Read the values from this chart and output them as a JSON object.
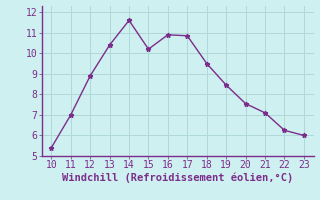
{
  "x": [
    10,
    11,
    12,
    13,
    14,
    15,
    16,
    17,
    18,
    19,
    20,
    21,
    22,
    23
  ],
  "y": [
    5.4,
    7.0,
    8.9,
    10.4,
    11.6,
    10.2,
    10.9,
    10.85,
    9.5,
    8.45,
    7.55,
    7.1,
    6.25,
    6.0
  ],
  "line_color": "#7b2d8b",
  "marker": "*",
  "bg_color": "#cff0f0",
  "grid_color": "#b0d8d8",
  "xlabel": "Windchill (Refroidissement éolien,°C)",
  "xlabel_color": "#7b2d8b",
  "tick_color": "#7b2d8b",
  "spine_color": "#7b2d8b",
  "ylim": [
    5,
    12
  ],
  "xlim": [
    9.5,
    23.5
  ],
  "yticks": [
    5,
    6,
    7,
    8,
    9,
    10,
    11,
    12
  ],
  "xticks": [
    10,
    11,
    12,
    13,
    14,
    15,
    16,
    17,
    18,
    19,
    20,
    21,
    22,
    23
  ],
  "tick_fontsize": 7,
  "xlabel_fontsize": 7.5,
  "line_width": 1.0,
  "marker_size": 3.5
}
